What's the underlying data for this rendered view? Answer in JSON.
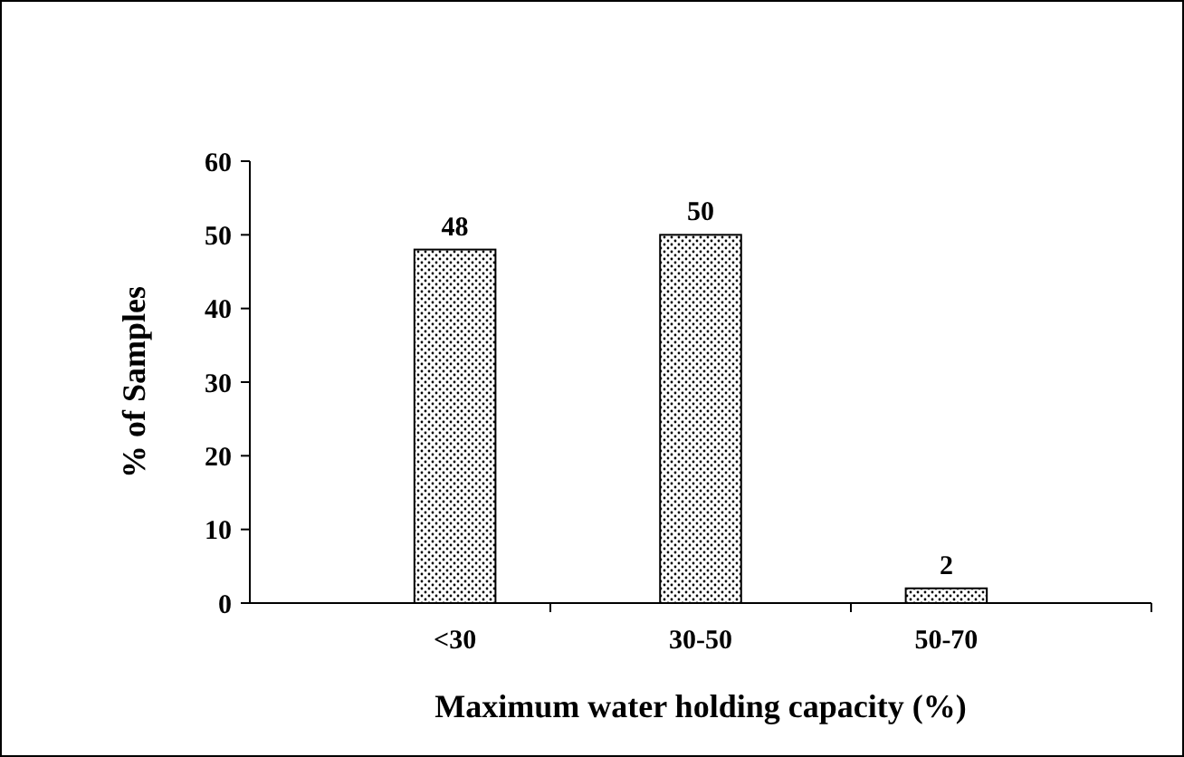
{
  "chart_data": {
    "type": "bar",
    "xlabel": "Maximum water holding capacity (%)",
    "ylabel": "% of Samples",
    "categories": [
      "<30",
      "30-50",
      "50-70"
    ],
    "values": [
      48,
      50,
      2
    ],
    "color": "#000000",
    "ylim": [
      0,
      60
    ],
    "yticks": [
      0,
      10,
      20,
      30,
      40,
      50,
      60
    ],
    "data_labels": true,
    "grid": false
  }
}
